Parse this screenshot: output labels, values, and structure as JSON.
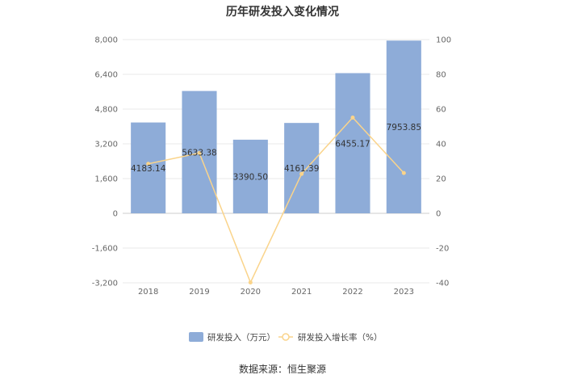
{
  "title": "历年研发投入变化情况",
  "source": "数据来源：恒生聚源",
  "chart_data": {
    "type": "bar",
    "categories": [
      "2018",
      "2019",
      "2020",
      "2021",
      "2022",
      "2023"
    ],
    "series": [
      {
        "name": "研发投入（万元）",
        "type": "bar",
        "axis": "left",
        "color": "#8eacd8",
        "values": [
          4183.14,
          5633.38,
          3390.5,
          4161.39,
          6455.17,
          7953.85
        ],
        "labels": [
          "4183.14",
          "5633.38",
          "3390.50",
          "4161.39",
          "6455.17",
          "7953.85"
        ]
      },
      {
        "name": "研发投入增长率（%）",
        "type": "line",
        "axis": "right",
        "color": "#fad48b",
        "values": [
          28.5,
          34.7,
          -39.8,
          22.7,
          55.1,
          23.2
        ]
      }
    ],
    "left_axis": {
      "ylim": [
        -3200,
        8000
      ],
      "ticks": [
        8000,
        6400,
        4800,
        3200,
        1600,
        0,
        -1600,
        -3200
      ],
      "tick_labels": [
        "8,000",
        "6,400",
        "4,800",
        "3,200",
        "1,600",
        "0",
        "-1,600",
        "-3,200"
      ]
    },
    "right_axis": {
      "ylim": [
        -40,
        100
      ],
      "ticks": [
        100,
        80,
        60,
        40,
        20,
        0,
        -20,
        -40
      ],
      "tick_labels": [
        "100",
        "80",
        "60",
        "40",
        "20",
        "0",
        "-20",
        "-40"
      ]
    },
    "grid": true,
    "legend": "bottom"
  }
}
